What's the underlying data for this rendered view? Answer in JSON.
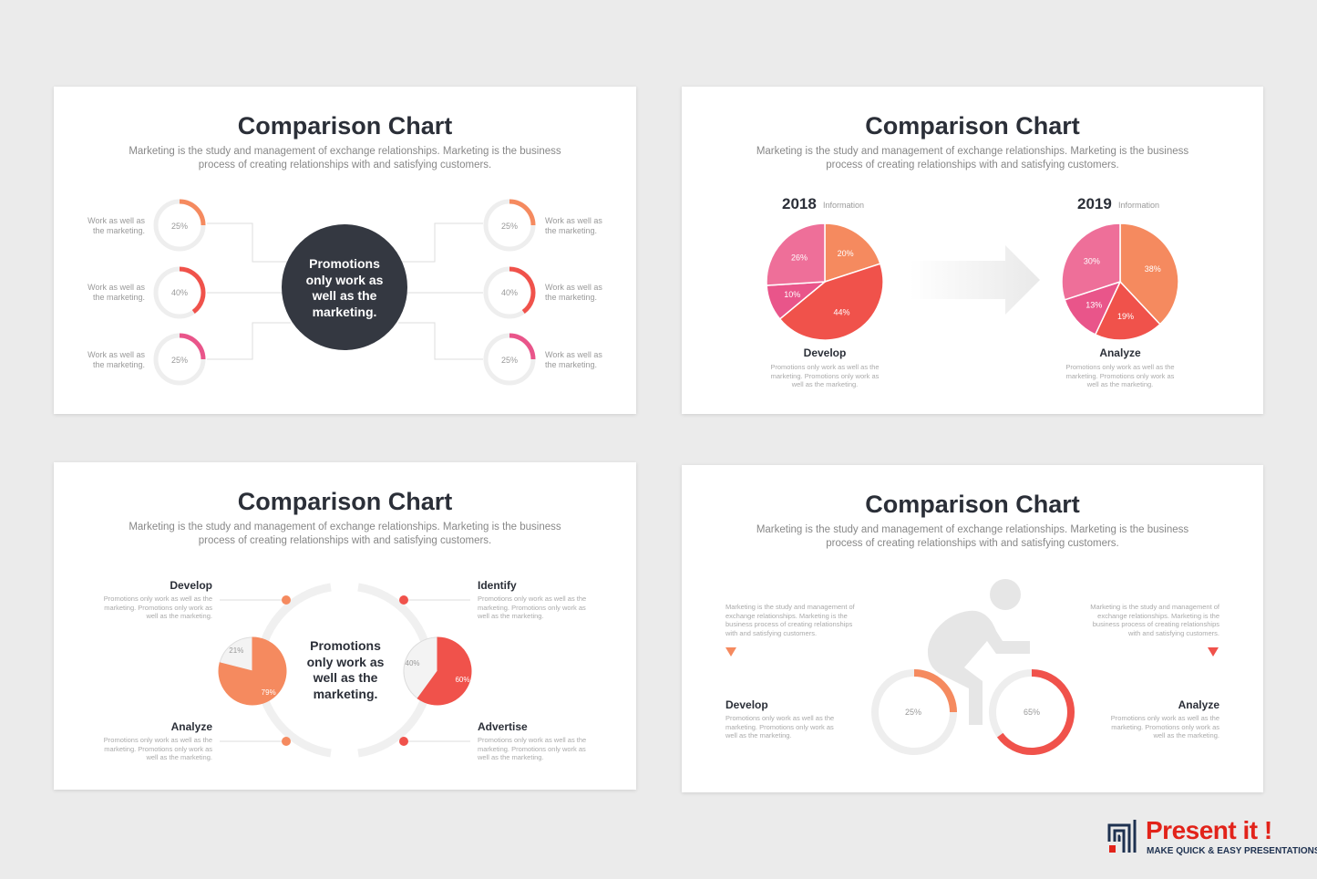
{
  "slide1": {
    "title": "Comparison Chart",
    "subtitle_line1": "Marketing is the study and management of exchange relationships. Marketing is the business",
    "subtitle_line2": "process of creating relationships with and satisfying customers.",
    "center_text": [
      "Promotions",
      "only work as",
      "well as the",
      "marketing."
    ],
    "label_line1": "Work as well as",
    "label_line2": "the marketing.",
    "rings_left": [
      "25%",
      "40%",
      "25%"
    ],
    "rings_right": [
      "25%",
      "40%",
      "25%"
    ]
  },
  "slide2": {
    "title": "Comparison Chart",
    "subtitle_line1": "Marketing is the study and management of exchange relationships. Marketing is the business",
    "subtitle_line2": "process of creating relationships with and satisfying customers.",
    "left": {
      "year": "2018",
      "info": "Information",
      "heading": "Develop",
      "desc": [
        "Promotions only work as well as the",
        "marketing. Promotions only work as",
        "well as the marketing."
      ]
    },
    "right": {
      "year": "2019",
      "info": "Information",
      "heading": "Analyze",
      "desc": [
        "Promotions only work as well as the",
        "marketing. Promotions only work as",
        "well as the marketing."
      ]
    }
  },
  "slide3": {
    "title": "Comparison Chart",
    "subtitle_line1": "Marketing is the study and management of exchange relationships. Marketing is the business",
    "subtitle_line2": "process of creating relationships with and satisfying customers.",
    "center_text": [
      "Promotions",
      "only work as",
      "well as the",
      "marketing."
    ],
    "develop": {
      "heading": "Develop",
      "desc": [
        "Promotions only work as well as the",
        "marketing. Promotions only work as",
        "well as the marketing."
      ]
    },
    "identify": {
      "heading": "Identify",
      "desc": [
        "Promotions only work as well as the",
        "marketing. Promotions only work as",
        "well as the marketing."
      ]
    },
    "analyze": {
      "heading": "Analyze",
      "desc": [
        "Promotions only work as well as the",
        "marketing. Promotions only work as",
        "well as the marketing."
      ]
    },
    "advertise": {
      "heading": "Advertise",
      "desc": [
        "Promotions only work as well as the",
        "marketing. Promotions only work as",
        "well as the marketing."
      ]
    },
    "pie_left": {
      "a": "21%",
      "b": "79%"
    },
    "pie_right": {
      "a": "40%",
      "b": "60%"
    }
  },
  "slide4": {
    "title": "Comparison Chart",
    "subtitle_line1": "Marketing is the study and management of exchange relationships. Marketing is the business",
    "subtitle_line2": "process of creating relationships with and satisfying customers.",
    "left_note": [
      "Marketing is the study and management of",
      "exchange relationships. Marketing is the",
      "business process of creating relationships",
      "with and satisfying customers."
    ],
    "right_note": [
      "Marketing is the study and management of",
      "exchange relationships. Marketing is the",
      "business process of creating relationships",
      "with and satisfying customers."
    ],
    "develop": {
      "heading": "Develop",
      "desc": [
        "Promotions only work as well as the",
        "marketing. Promotions only work as",
        "well as the marketing."
      ]
    },
    "analyze": {
      "heading": "Analyze",
      "desc": [
        "Promotions only work as well as the",
        "marketing. Promotions only work as",
        "well as the marketing."
      ]
    },
    "ring_left": "25%",
    "ring_right": "65%"
  },
  "logo": {
    "brand": "Present it !",
    "tagline": "MAKE QUICK & EASY PRESENTATIONS"
  },
  "chart_data": [
    {
      "type": "pie",
      "title": "2018",
      "values": [
        20,
        44,
        10,
        26
      ],
      "labels": [
        "20%",
        "44%",
        "10%",
        "26%"
      ]
    },
    {
      "type": "pie",
      "title": "2019",
      "values": [
        38,
        19,
        13,
        30
      ],
      "labels": [
        "38%",
        "19%",
        "13%",
        "30%"
      ]
    },
    {
      "type": "pie",
      "values": [
        21,
        79
      ],
      "labels": [
        "21%",
        "79%"
      ]
    },
    {
      "type": "pie",
      "values": [
        40,
        60
      ],
      "labels": [
        "40%",
        "60%"
      ]
    }
  ],
  "colors": {
    "orange": "#f58a5f",
    "coral": "#f0524b",
    "pink": "#e9558a",
    "pinklight": "#ee6f99",
    "dark": "#343841",
    "grey": "#eeeeee"
  }
}
